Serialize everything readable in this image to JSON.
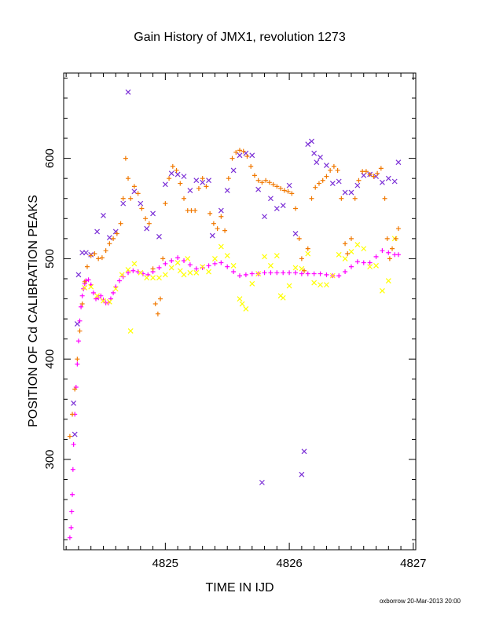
{
  "chart_data": {
    "type": "scatter",
    "title": "Gain History of JMX1, revolution 1273",
    "xlabel": "TIME IN IJD",
    "ylabel": "POSITION OF Cd CALIBRATION PEAKS",
    "xlim": [
      4824.18,
      4827.02
    ],
    "ylim": [
      210,
      685
    ],
    "x_ticks": [
      4825,
      4826,
      4827
    ],
    "y_ticks": [
      300,
      400,
      500,
      600
    ],
    "grid": false,
    "legend": "none",
    "series": [
      {
        "color": "#ff00ff",
        "marker": "plus",
        "points": [
          [
            4824.23,
            222
          ],
          [
            4824.24,
            232
          ],
          [
            4824.245,
            248
          ],
          [
            4824.25,
            265
          ],
          [
            4824.255,
            290
          ],
          [
            4824.26,
            315
          ],
          [
            4824.27,
            345
          ],
          [
            4824.28,
            372
          ],
          [
            4824.29,
            395
          ],
          [
            4824.3,
            418
          ],
          [
            4824.31,
            438
          ],
          [
            4824.32,
            452
          ],
          [
            4824.33,
            463
          ],
          [
            4824.34,
            470
          ],
          [
            4824.35,
            475
          ],
          [
            4824.36,
            478
          ],
          [
            4824.38,
            479
          ],
          [
            4824.4,
            474
          ],
          [
            4824.42,
            466
          ],
          [
            4824.44,
            460
          ],
          [
            4824.46,
            461
          ],
          [
            4824.48,
            463
          ],
          [
            4824.5,
            459
          ],
          [
            4824.52,
            456
          ],
          [
            4824.54,
            456
          ],
          [
            4824.56,
            460
          ],
          [
            4824.58,
            466
          ],
          [
            4824.6,
            472
          ],
          [
            4824.63,
            478
          ],
          [
            4824.66,
            482
          ],
          [
            4824.7,
            486
          ],
          [
            4824.74,
            488
          ],
          [
            4824.78,
            487
          ],
          [
            4824.82,
            485
          ],
          [
            4824.86,
            484
          ],
          [
            4824.9,
            487
          ],
          [
            4824.95,
            491
          ],
          [
            4825.0,
            495
          ],
          [
            4825.05,
            498
          ],
          [
            4825.1,
            501
          ],
          [
            4825.15,
            498
          ],
          [
            4825.2,
            494
          ],
          [
            4825.25,
            490
          ],
          [
            4825.3,
            491
          ],
          [
            4825.35,
            493
          ],
          [
            4825.4,
            495
          ],
          [
            4825.45,
            496
          ],
          [
            4825.5,
            492
          ],
          [
            4825.55,
            487
          ],
          [
            4825.6,
            483
          ],
          [
            4825.65,
            484
          ],
          [
            4825.7,
            485
          ],
          [
            4825.75,
            485
          ],
          [
            4825.8,
            486
          ],
          [
            4825.85,
            486
          ],
          [
            4825.9,
            486
          ],
          [
            4825.95,
            486
          ],
          [
            4826.0,
            486
          ],
          [
            4826.05,
            486
          ],
          [
            4826.1,
            485
          ],
          [
            4826.15,
            485
          ],
          [
            4826.2,
            485
          ],
          [
            4826.25,
            485
          ],
          [
            4826.3,
            484
          ],
          [
            4826.35,
            483
          ],
          [
            4826.4,
            483
          ],
          [
            4826.45,
            487
          ],
          [
            4826.5,
            492
          ],
          [
            4826.55,
            497
          ],
          [
            4826.6,
            496
          ],
          [
            4826.65,
            496
          ],
          [
            4826.7,
            502
          ],
          [
            4826.75,
            508
          ],
          [
            4826.8,
            506
          ],
          [
            4826.85,
            504
          ],
          [
            4826.88,
            504
          ]
        ]
      },
      {
        "color": "#ffff00",
        "marker": "cross",
        "points": [
          [
            4824.35,
            471
          ],
          [
            4824.4,
            472
          ],
          [
            4824.45,
            463
          ],
          [
            4824.5,
            458
          ],
          [
            4824.55,
            457
          ],
          [
            4824.6,
            470
          ],
          [
            4824.65,
            484
          ],
          [
            4824.7,
            489
          ],
          [
            4824.72,
            428
          ],
          [
            4824.75,
            495
          ],
          [
            4824.8,
            486
          ],
          [
            4824.85,
            481
          ],
          [
            4824.9,
            481
          ],
          [
            4824.95,
            481
          ],
          [
            4825.0,
            484
          ],
          [
            4825.05,
            491
          ],
          [
            4825.1,
            496
          ],
          [
            4825.12,
            488
          ],
          [
            4825.15,
            484
          ],
          [
            4825.18,
            500
          ],
          [
            4825.2,
            486
          ],
          [
            4825.25,
            486
          ],
          [
            4825.3,
            492
          ],
          [
            4825.35,
            487
          ],
          [
            4825.4,
            500
          ],
          [
            4825.45,
            512
          ],
          [
            4825.5,
            503
          ],
          [
            4825.55,
            493
          ],
          [
            4825.6,
            460
          ],
          [
            4825.62,
            455
          ],
          [
            4825.65,
            450
          ],
          [
            4825.7,
            475
          ],
          [
            4825.75,
            485
          ],
          [
            4825.8,
            502
          ],
          [
            4825.85,
            493
          ],
          [
            4825.9,
            503
          ],
          [
            4825.93,
            463
          ],
          [
            4825.95,
            461
          ],
          [
            4826.0,
            473
          ],
          [
            4826.05,
            491
          ],
          [
            4826.1,
            490
          ],
          [
            4826.15,
            505
          ],
          [
            4826.2,
            476
          ],
          [
            4826.25,
            474
          ],
          [
            4826.3,
            474
          ],
          [
            4826.35,
            483
          ],
          [
            4826.4,
            504
          ],
          [
            4826.45,
            500
          ],
          [
            4826.5,
            507
          ],
          [
            4826.55,
            514
          ],
          [
            4826.6,
            510
          ],
          [
            4826.65,
            492
          ],
          [
            4826.7,
            493
          ],
          [
            4826.75,
            468
          ],
          [
            4826.8,
            478
          ],
          [
            4826.85,
            520
          ]
        ]
      },
      {
        "color": "#7b2fd6",
        "marker": "cross",
        "points": [
          [
            4824.26,
            356
          ],
          [
            4824.27,
            325
          ],
          [
            4824.29,
            435
          ],
          [
            4824.3,
            484
          ],
          [
            4824.33,
            506
          ],
          [
            4824.36,
            506
          ],
          [
            4824.4,
            504
          ],
          [
            4824.45,
            527
          ],
          [
            4824.5,
            543
          ],
          [
            4824.55,
            521
          ],
          [
            4824.6,
            527
          ],
          [
            4824.66,
            555
          ],
          [
            4824.7,
            666
          ],
          [
            4824.75,
            567
          ],
          [
            4824.8,
            555
          ],
          [
            4824.85,
            530
          ],
          [
            4824.9,
            545
          ],
          [
            4824.95,
            522
          ],
          [
            4825.0,
            574
          ],
          [
            4825.05,
            585
          ],
          [
            4825.1,
            584
          ],
          [
            4825.15,
            582
          ],
          [
            4825.2,
            568
          ],
          [
            4825.25,
            578
          ],
          [
            4825.3,
            576
          ],
          [
            4825.35,
            578
          ],
          [
            4825.38,
            523
          ],
          [
            4825.45,
            548
          ],
          [
            4825.5,
            568
          ],
          [
            4825.55,
            588
          ],
          [
            4825.6,
            603
          ],
          [
            4825.65,
            605
          ],
          [
            4825.7,
            603
          ],
          [
            4825.75,
            569
          ],
          [
            4825.78,
            277
          ],
          [
            4825.8,
            542
          ],
          [
            4825.85,
            560
          ],
          [
            4825.9,
            550
          ],
          [
            4825.95,
            553
          ],
          [
            4826.0,
            573
          ],
          [
            4826.05,
            525
          ],
          [
            4826.1,
            285
          ],
          [
            4826.12,
            308
          ],
          [
            4826.15,
            614
          ],
          [
            4826.18,
            617
          ],
          [
            4826.2,
            605
          ],
          [
            4826.22,
            596
          ],
          [
            4826.25,
            601
          ],
          [
            4826.3,
            593
          ],
          [
            4826.35,
            575
          ],
          [
            4826.4,
            577
          ],
          [
            4826.45,
            566
          ],
          [
            4826.5,
            566
          ],
          [
            4826.55,
            573
          ],
          [
            4826.6,
            583
          ],
          [
            4826.65,
            584
          ],
          [
            4826.7,
            582
          ],
          [
            4826.75,
            576
          ],
          [
            4826.8,
            580
          ],
          [
            4826.85,
            577
          ],
          [
            4826.88,
            596
          ]
        ]
      },
      {
        "color": "#f07800",
        "marker": "plus",
        "points": [
          [
            4824.23,
            323
          ],
          [
            4824.25,
            345
          ],
          [
            4824.27,
            370
          ],
          [
            4824.29,
            400
          ],
          [
            4824.31,
            428
          ],
          [
            4824.33,
            455
          ],
          [
            4824.35,
            477
          ],
          [
            4824.37,
            492
          ],
          [
            4824.4,
            503
          ],
          [
            4824.43,
            505
          ],
          [
            4824.46,
            500
          ],
          [
            4824.49,
            501
          ],
          [
            4824.52,
            508
          ],
          [
            4824.55,
            515
          ],
          [
            4824.58,
            520
          ],
          [
            4824.61,
            525
          ],
          [
            4824.64,
            535
          ],
          [
            4824.66,
            560
          ],
          [
            4824.68,
            600
          ],
          [
            4824.7,
            580
          ],
          [
            4824.72,
            560
          ],
          [
            4824.75,
            572
          ],
          [
            4824.78,
            565
          ],
          [
            4824.81,
            550
          ],
          [
            4824.84,
            540
          ],
          [
            4824.87,
            535
          ],
          [
            4824.9,
            490
          ],
          [
            4824.92,
            455
          ],
          [
            4824.94,
            445
          ],
          [
            4824.96,
            460
          ],
          [
            4824.98,
            500
          ],
          [
            4825.0,
            555
          ],
          [
            4825.03,
            580
          ],
          [
            4825.06,
            592
          ],
          [
            4825.09,
            588
          ],
          [
            4825.12,
            575
          ],
          [
            4825.15,
            560
          ],
          [
            4825.18,
            548
          ],
          [
            4825.21,
            548
          ],
          [
            4825.24,
            548
          ],
          [
            4825.27,
            570
          ],
          [
            4825.3,
            580
          ],
          [
            4825.33,
            572
          ],
          [
            4825.36,
            545
          ],
          [
            4825.39,
            535
          ],
          [
            4825.42,
            530
          ],
          [
            4825.45,
            542
          ],
          [
            4825.48,
            528
          ],
          [
            4825.51,
            580
          ],
          [
            4825.54,
            600
          ],
          [
            4825.57,
            606
          ],
          [
            4825.6,
            608
          ],
          [
            4825.63,
            607
          ],
          [
            4825.66,
            602
          ],
          [
            4825.69,
            592
          ],
          [
            4825.72,
            583
          ],
          [
            4825.75,
            578
          ],
          [
            4825.78,
            576
          ],
          [
            4825.81,
            578
          ],
          [
            4825.84,
            576
          ],
          [
            4825.87,
            574
          ],
          [
            4825.9,
            572
          ],
          [
            4825.93,
            570
          ],
          [
            4825.96,
            568
          ],
          [
            4825.99,
            567
          ],
          [
            4826.02,
            565
          ],
          [
            4826.05,
            550
          ],
          [
            4826.08,
            520
          ],
          [
            4826.1,
            500
          ],
          [
            4826.12,
            488
          ],
          [
            4826.15,
            510
          ],
          [
            4826.18,
            560
          ],
          [
            4826.21,
            571
          ],
          [
            4826.24,
            575
          ],
          [
            4826.27,
            578
          ],
          [
            4826.3,
            582
          ],
          [
            4826.33,
            588
          ],
          [
            4826.36,
            592
          ],
          [
            4826.39,
            588
          ],
          [
            4826.42,
            560
          ],
          [
            4826.45,
            515
          ],
          [
            4826.47,
            505
          ],
          [
            4826.5,
            520
          ],
          [
            4826.53,
            560
          ],
          [
            4826.56,
            578
          ],
          [
            4826.59,
            587
          ],
          [
            4826.62,
            587
          ],
          [
            4826.65,
            584
          ],
          [
            4826.68,
            582
          ],
          [
            4826.71,
            585
          ],
          [
            4826.74,
            590
          ],
          [
            4826.77,
            560
          ],
          [
            4826.79,
            520
          ],
          [
            4826.81,
            500
          ],
          [
            4826.83,
            510
          ],
          [
            4826.86,
            520
          ],
          [
            4826.88,
            530
          ]
        ]
      }
    ]
  },
  "footer": {
    "credit": "oxborrow 20-Mar-2013 20:00"
  }
}
